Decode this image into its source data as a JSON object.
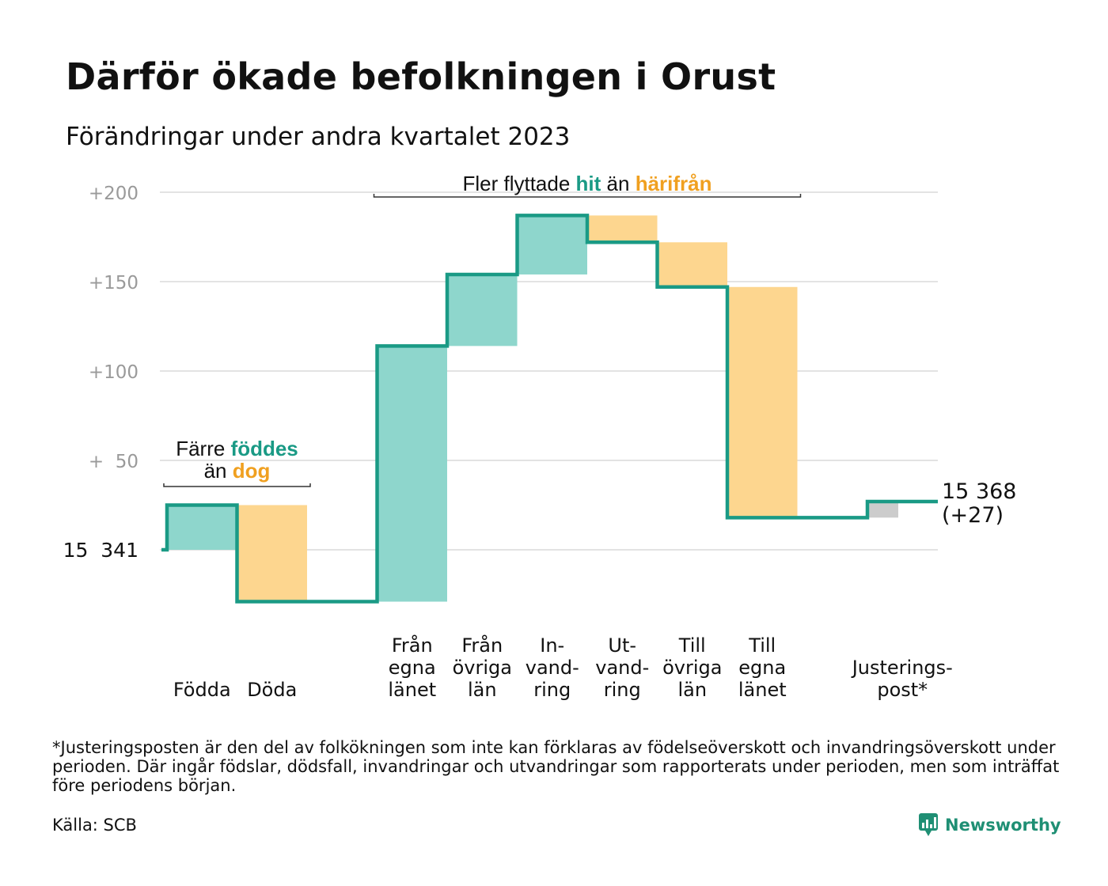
{
  "title": "Därför ökade befolkningen i Orust",
  "subtitle": "Förändringar under andra kvartalet 2023",
  "footnote": "*Justeringsposten är den del av folkökningen som inte kan förklaras av födelseöverskott och invandringsöverskott under perioden. Där ingår födslar, dödsfall, invandringar och utvandringar som rapporterats under perioden, men som inträffat före periodens början.",
  "source": "Källa: SCB",
  "brand": "Newsworthy",
  "colors": {
    "increase": "#8ed6cc",
    "decrease": "#fdd68f",
    "adjustment": "#cccccc",
    "line": "#1a9a85",
    "accent_teal": "#1a9a85",
    "accent_orange": "#f0a020",
    "grid": "#e3e3e3",
    "tick": "#9a9a9a"
  },
  "chart_data": {
    "type": "waterfall",
    "start_value": 15341,
    "start_label": "15  341",
    "end_label": "15 368",
    "end_change_label": "(+27)",
    "yticks": [
      {
        "value": 200,
        "label": "+200"
      },
      {
        "value": 150,
        "label": "+150"
      },
      {
        "value": 100,
        "label": "+100"
      },
      {
        "value": 50,
        "label": "+  50"
      }
    ],
    "ylim": [
      -35,
      205
    ],
    "grid": true,
    "steps": [
      {
        "key": "fodda",
        "label": [
          "Födda"
        ],
        "change": 25,
        "kind": "increase"
      },
      {
        "key": "doda",
        "label": [
          "Döda"
        ],
        "change": -54,
        "kind": "decrease"
      },
      {
        "key": "gap",
        "label": [],
        "change": 0,
        "kind": "gap"
      },
      {
        "key": "fran-egna",
        "label": [
          "Från",
          "egna",
          "länet"
        ],
        "change": 143,
        "kind": "increase"
      },
      {
        "key": "fran-ovriga",
        "label": [
          "Från",
          "övriga",
          "län"
        ],
        "change": 40,
        "kind": "increase"
      },
      {
        "key": "invandring",
        "label": [
          "In-",
          "vand-",
          "ring"
        ],
        "change": 33,
        "kind": "increase"
      },
      {
        "key": "utvandring",
        "label": [
          "Ut-",
          "vand-",
          "ring"
        ],
        "change": -15,
        "kind": "decrease"
      },
      {
        "key": "till-ovriga",
        "label": [
          "Till",
          "övriga",
          "län"
        ],
        "change": -25,
        "kind": "decrease"
      },
      {
        "key": "till-egna",
        "label": [
          "Till",
          "egna",
          "länet"
        ],
        "change": -129,
        "kind": "decrease"
      },
      {
        "key": "gap2",
        "label": [],
        "change": 0,
        "kind": "gap"
      },
      {
        "key": "justering",
        "label": [
          "Justerings-",
          "post*"
        ],
        "change": 9,
        "kind": "adjustment"
      }
    ],
    "annotations": [
      {
        "key": "births",
        "line1": [
          "Färre ",
          "föddes"
        ],
        "line2": [
          "än ",
          "dog"
        ],
        "spans": [
          "fodda",
          "doda"
        ]
      },
      {
        "key": "migration",
        "line1": [
          "Fler flyttade ",
          "hit",
          " än ",
          "härifrån"
        ],
        "spans": [
          "fran-egna",
          "till-egna"
        ]
      }
    ]
  }
}
